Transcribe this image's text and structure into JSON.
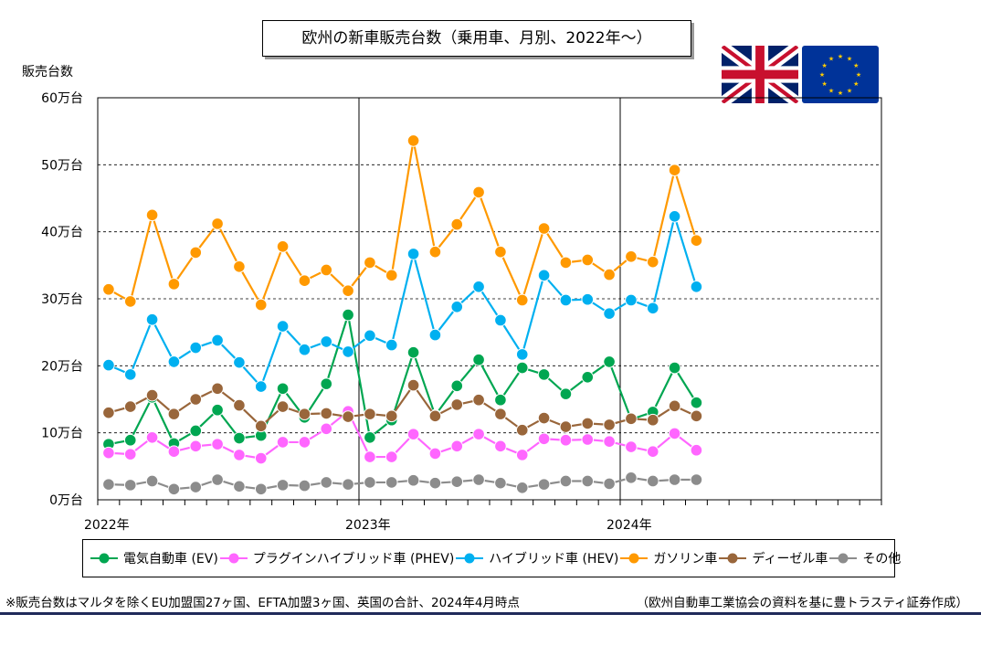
{
  "title": "欧州の新車販売台数（乗用車、月別、2022年～）",
  "ylabel": "販売台数",
  "note": "※販売台数はマルタを除くEU加盟国27ヶ国、EFTA加盟3ヶ国、英国の合計、2024年4月時点",
  "source": "（欧州自動車工業協会の資料を基に豊トラスティ証券作成）",
  "flags": [
    "uk-flag",
    "eu-flag"
  ],
  "chart_data": {
    "type": "line",
    "x_ticks": [
      "2022年",
      "2023年",
      "2024年"
    ],
    "y_ticks": [
      "0万台",
      "10万台",
      "20万台",
      "30万台",
      "40万台",
      "50万台",
      "60万台"
    ],
    "ylim": [
      0,
      60
    ],
    "x_months_total": 36,
    "grid": true,
    "legend_position": "bottom",
    "x": [
      "2022-01",
      "2022-02",
      "2022-03",
      "2022-04",
      "2022-05",
      "2022-06",
      "2022-07",
      "2022-08",
      "2022-09",
      "2022-10",
      "2022-11",
      "2022-12",
      "2023-01",
      "2023-02",
      "2023-03",
      "2023-04",
      "2023-05",
      "2023-06",
      "2023-07",
      "2023-08",
      "2023-09",
      "2023-10",
      "2023-11",
      "2023-12",
      "2024-01",
      "2024-02",
      "2024-03",
      "2024-04"
    ],
    "series": [
      {
        "name": "電気自動車 (EV)",
        "color": "#00a651",
        "values": [
          8.3,
          8.9,
          15.3,
          8.4,
          10.3,
          13.4,
          9.2,
          9.6,
          16.6,
          12.3,
          17.3,
          27.6,
          9.3,
          11.9,
          22.0,
          12.6,
          17.0,
          20.9,
          14.9,
          19.7,
          18.7,
          15.8,
          18.3,
          20.6,
          12.0,
          13.1,
          19.7,
          14.5
        ]
      },
      {
        "name": "プラグインハイブリッド車 (PHEV)",
        "color": "#ff66ff",
        "values": [
          7.0,
          6.8,
          9.3,
          7.2,
          8.0,
          8.3,
          6.7,
          6.2,
          8.6,
          8.6,
          10.6,
          13.2,
          6.4,
          6.4,
          9.8,
          6.9,
          8.0,
          9.8,
          8.0,
          6.7,
          9.1,
          8.9,
          9.0,
          8.7,
          7.9,
          7.2,
          9.9,
          7.4
        ]
      },
      {
        "name": "ハイブリッド車 (HEV)",
        "color": "#00b0f0",
        "values": [
          20.1,
          18.7,
          26.9,
          20.6,
          22.7,
          23.8,
          20.5,
          16.9,
          25.9,
          22.4,
          23.6,
          22.1,
          24.5,
          23.1,
          36.7,
          24.6,
          28.8,
          31.8,
          26.8,
          21.7,
          33.5,
          29.8,
          29.9,
          27.8,
          29.8,
          28.6,
          42.3,
          31.8
        ]
      },
      {
        "name": "ガソリン車",
        "color": "#ff9900",
        "values": [
          31.4,
          29.6,
          42.5,
          32.2,
          36.9,
          41.2,
          34.8,
          29.1,
          37.8,
          32.7,
          34.3,
          31.2,
          35.4,
          33.5,
          53.6,
          37.0,
          41.1,
          45.9,
          37.0,
          29.8,
          40.5,
          35.4,
          35.8,
          33.6,
          36.3,
          35.5,
          49.2,
          38.7
        ]
      },
      {
        "name": "ディーゼル車",
        "color": "#99663b",
        "values": [
          13.0,
          13.9,
          15.6,
          12.8,
          15.0,
          16.6,
          14.1,
          11.0,
          13.9,
          12.8,
          12.9,
          12.4,
          12.8,
          12.5,
          17.1,
          12.5,
          14.2,
          14.9,
          12.8,
          10.4,
          12.2,
          10.9,
          11.4,
          11.2,
          12.1,
          11.9,
          14.0,
          12.5
        ]
      },
      {
        "name": "その他",
        "color": "#8c8c8c",
        "values": [
          2.3,
          2.2,
          2.8,
          1.6,
          1.9,
          3.0,
          2.0,
          1.6,
          2.2,
          2.1,
          2.6,
          2.3,
          2.6,
          2.6,
          2.9,
          2.5,
          2.7,
          3.0,
          2.5,
          1.8,
          2.3,
          2.8,
          2.8,
          2.4,
          3.3,
          2.8,
          3.0,
          3.0
        ]
      }
    ]
  }
}
